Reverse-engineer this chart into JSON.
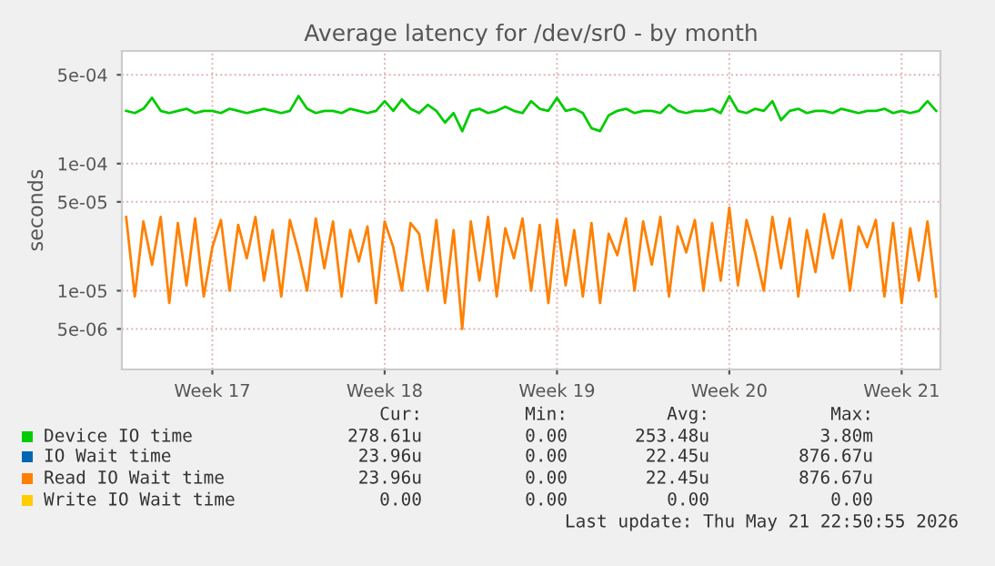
{
  "chart_data": {
    "type": "line",
    "title": "Average latency for /dev/sr0 - by month",
    "ylabel": "seconds",
    "categories": [
      null,
      null,
      null,
      null,
      null,
      null,
      null,
      null,
      null,
      null,
      "Week 17",
      null,
      null,
      null,
      null,
      null,
      null,
      null,
      null,
      null,
      null,
      null,
      null,
      null,
      null,
      null,
      null,
      null,
      null,
      null,
      "Week 18",
      null,
      null,
      null,
      null,
      null,
      null,
      null,
      null,
      null,
      null,
      null,
      null,
      null,
      null,
      null,
      null,
      null,
      null,
      null,
      "Week 19",
      null,
      null,
      null,
      null,
      null,
      null,
      null,
      null,
      null,
      null,
      null,
      null,
      null,
      null,
      null,
      null,
      null,
      null,
      null,
      "Week 20",
      null,
      null,
      null,
      null,
      null,
      null,
      null,
      null,
      null,
      null,
      null,
      null,
      null,
      null,
      null,
      null,
      null,
      null,
      null,
      "Week 21",
      null,
      null,
      null,
      null
    ],
    "series": [
      {
        "name": "Device IO time",
        "color": "#00cc00",
        "values": [
          0.00026,
          0.00025,
          0.00027,
          0.00033,
          0.00026,
          0.00025,
          0.00026,
          0.00027,
          0.00025,
          0.00026,
          0.00026,
          0.00025,
          0.00027,
          0.00026,
          0.00025,
          0.00026,
          0.00027,
          0.00026,
          0.00025,
          0.00026,
          0.00034,
          0.00027,
          0.00025,
          0.00026,
          0.00026,
          0.00025,
          0.00027,
          0.00026,
          0.00025,
          0.00026,
          0.00031,
          0.00026,
          0.00032,
          0.00027,
          0.00025,
          0.00029,
          0.00026,
          0.00021,
          0.00025,
          0.00018,
          0.00026,
          0.00027,
          0.00025,
          0.00026,
          0.00028,
          0.00026,
          0.00025,
          0.00031,
          0.00027,
          0.00026,
          0.00033,
          0.00026,
          0.00027,
          0.00025,
          0.00019,
          0.00018,
          0.00024,
          0.00026,
          0.00027,
          0.00025,
          0.00026,
          0.00026,
          0.00025,
          0.00029,
          0.00026,
          0.00025,
          0.00026,
          0.00026,
          0.00027,
          0.00025,
          0.00034,
          0.00026,
          0.00025,
          0.00027,
          0.00026,
          0.00031,
          0.00022,
          0.00026,
          0.00027,
          0.00025,
          0.00026,
          0.00026,
          0.00025,
          0.00027,
          0.00026,
          0.00025,
          0.00026,
          0.00026,
          0.00027,
          0.00025,
          0.00026,
          0.00025,
          0.00026,
          0.00031,
          0.00026
        ]
      },
      {
        "name": "IO Wait time",
        "color": "#0066b3",
        "values": [
          null,
          null,
          null,
          null,
          null,
          null,
          null,
          null,
          null,
          null,
          null,
          null,
          null,
          null,
          null,
          null,
          null,
          null,
          null,
          null,
          null,
          null,
          null,
          null,
          null,
          null,
          null,
          null,
          null,
          null,
          null,
          null,
          null,
          null,
          null,
          null,
          null,
          null,
          null,
          null,
          null,
          null,
          null,
          null,
          null,
          null,
          null,
          null,
          null,
          null,
          null,
          null,
          null,
          null,
          null,
          null,
          null,
          null,
          null,
          null,
          null,
          null,
          null,
          null,
          null,
          null,
          null,
          null,
          null,
          null,
          null,
          null,
          null,
          null,
          null,
          null,
          null,
          null,
          null,
          null,
          null,
          null,
          null,
          null,
          null,
          null,
          null,
          null,
          null,
          null,
          null,
          null,
          null,
          null,
          null
        ]
      },
      {
        "name": "Read IO Wait time",
        "color": "#ff8000",
        "values": [
          3.8e-05,
          9e-06,
          3.5e-05,
          1.6e-05,
          3.8e-05,
          8e-06,
          3.4e-05,
          1.1e-05,
          3.7e-05,
          9e-06,
          2.2e-05,
          3.6e-05,
          1e-05,
          3.3e-05,
          1.8e-05,
          3.8e-05,
          1.2e-05,
          3e-05,
          9e-06,
          3.6e-05,
          2e-05,
          1e-05,
          3.7e-05,
          1.5e-05,
          3.5e-05,
          9e-06,
          3e-05,
          1.7e-05,
          3.2e-05,
          8e-06,
          3.5e-05,
          2.2e-05,
          1e-05,
          3.4e-05,
          2.8e-05,
          1e-05,
          3.6e-05,
          8e-06,
          3e-05,
          5e-06,
          3.5e-05,
          1.2e-05,
          3.8e-05,
          9e-06,
          3.1e-05,
          1.8e-05,
          3.7e-05,
          1e-05,
          3.3e-05,
          8e-06,
          3.6e-05,
          1.1e-05,
          3e-05,
          9e-06,
          3.4e-05,
          8e-06,
          2.8e-05,
          1.9e-05,
          3.7e-05,
          1e-05,
          3.5e-05,
          1.6e-05,
          3.8e-05,
          9e-06,
          3.2e-05,
          2e-05,
          3.6e-05,
          1e-05,
          3.4e-05,
          1.2e-05,
          4.5e-05,
          1.1e-05,
          3.6e-05,
          2e-05,
          1e-05,
          3.8e-05,
          1.5e-05,
          3.7e-05,
          9e-06,
          3e-05,
          1.4e-05,
          4e-05,
          1.8e-05,
          3.6e-05,
          1e-05,
          3.2e-05,
          2.2e-05,
          3.6e-05,
          9e-06,
          3.4e-05,
          8e-06,
          3.1e-05,
          1.2e-05,
          3.5e-05,
          9e-06
        ]
      },
      {
        "name": "Write IO Wait time",
        "color": "#ffcc00",
        "values": [
          null,
          null,
          null,
          null,
          null,
          null,
          null,
          null,
          null,
          null,
          null,
          null,
          null,
          null,
          null,
          null,
          null,
          null,
          null,
          null,
          null,
          null,
          null,
          null,
          null,
          null,
          null,
          null,
          null,
          null,
          null,
          null,
          null,
          null,
          null,
          null,
          null,
          null,
          null,
          null,
          null,
          null,
          null,
          null,
          null,
          null,
          null,
          null,
          null,
          null,
          null,
          null,
          null,
          null,
          null,
          null,
          null,
          null,
          null,
          null,
          null,
          null,
          null,
          null,
          null,
          null,
          null,
          null,
          null,
          null,
          null,
          null,
          null,
          null,
          null,
          null,
          null,
          null,
          null,
          null,
          null,
          null,
          null,
          null,
          null,
          null,
          null,
          null,
          null,
          null,
          null,
          null,
          null,
          null,
          null
        ]
      }
    ],
    "log": "y",
    "ylim": [
      2.4e-06,
      0.00077
    ],
    "yticks": [
      {
        "value": 0.0005,
        "label": "5e-04"
      },
      {
        "value": 0.0001,
        "label": "1e-04"
      },
      {
        "value": 5e-05,
        "label": "5e-05"
      },
      {
        "value": 1e-05,
        "label": "1e-05"
      },
      {
        "value": 5e-06,
        "label": "5e-06"
      }
    ],
    "grid": true,
    "legend": "bottom",
    "annotations": [
      "Cur:",
      "Min:",
      "Avg:",
      "Max:",
      "278.61u",
      "0.00",
      "253.48u",
      "3.80m",
      "23.96u",
      "0.00",
      "22.45u",
      "876.67u",
      "23.96u",
      "0.00",
      "22.45u",
      "876.67u",
      "0.00",
      "0.00",
      "0.00",
      "0.00",
      "Last update: Thu May 21 22:50:55 2026"
    ]
  }
}
